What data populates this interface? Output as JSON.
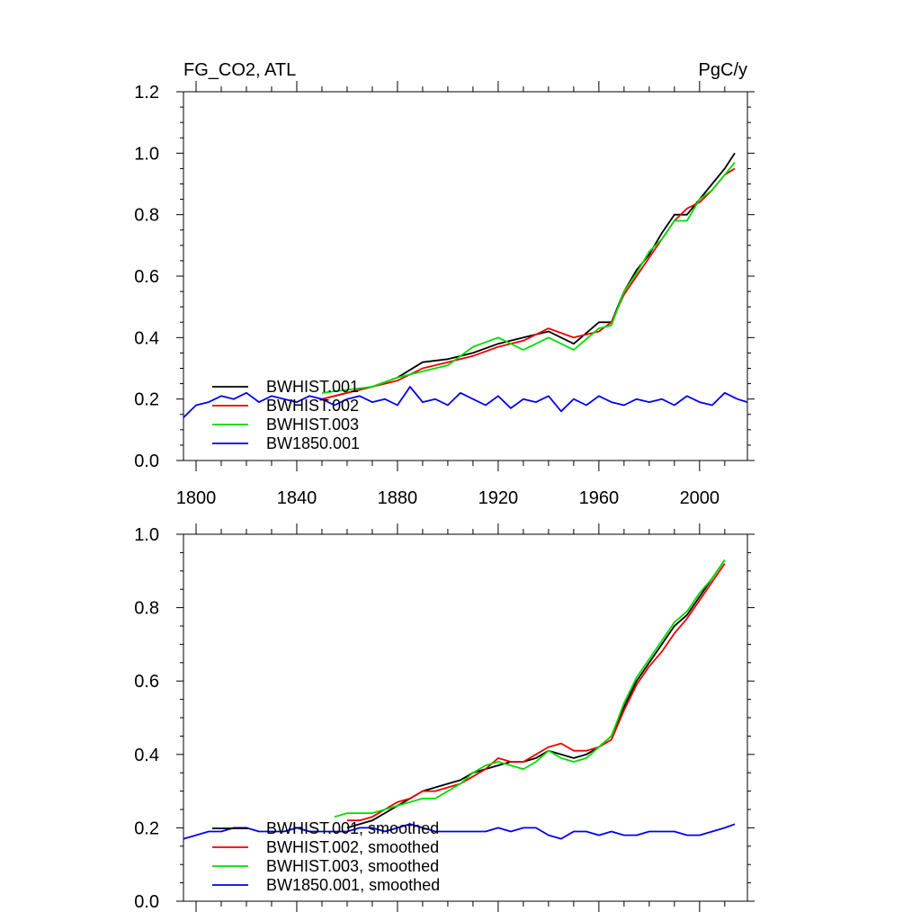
{
  "chart_data": [
    {
      "type": "line",
      "title": "FG_CO2, ATL",
      "units": "PgC/y",
      "xlim": [
        1795,
        2019
      ],
      "ylim": [
        0.0,
        1.2
      ],
      "xticks": [
        1800,
        1840,
        1880,
        1920,
        1960,
        2000
      ],
      "yticks": [
        0.0,
        0.2,
        0.4,
        0.6,
        0.8,
        1.0,
        1.2
      ],
      "ytick_labels": [
        "0.0",
        "0.2",
        "0.4",
        "0.6",
        "0.8",
        "1.0",
        "1.2"
      ],
      "grid": false,
      "legend_position": "bottom-left",
      "series": [
        {
          "name": "BWHIST.001",
          "color": "#000000",
          "x": [
            1850,
            1860,
            1870,
            1880,
            1890,
            1900,
            1910,
            1920,
            1930,
            1940,
            1950,
            1960,
            1965,
            1970,
            1975,
            1980,
            1985,
            1990,
            1995,
            2000,
            2005,
            2010,
            2014
          ],
          "y": [
            0.2,
            0.22,
            0.24,
            0.27,
            0.32,
            0.33,
            0.35,
            0.38,
            0.4,
            0.42,
            0.38,
            0.45,
            0.45,
            0.55,
            0.62,
            0.67,
            0.74,
            0.8,
            0.8,
            0.85,
            0.9,
            0.95,
            1.0
          ]
        },
        {
          "name": "BWHIST.002",
          "color": "#ee0000",
          "x": [
            1850,
            1860,
            1870,
            1880,
            1890,
            1900,
            1910,
            1920,
            1930,
            1940,
            1950,
            1960,
            1965,
            1970,
            1975,
            1980,
            1985,
            1990,
            1995,
            2000,
            2005,
            2010,
            2014
          ],
          "y": [
            0.2,
            0.22,
            0.24,
            0.26,
            0.3,
            0.32,
            0.34,
            0.37,
            0.39,
            0.43,
            0.4,
            0.42,
            0.45,
            0.54,
            0.6,
            0.66,
            0.72,
            0.78,
            0.82,
            0.84,
            0.88,
            0.93,
            0.95
          ]
        },
        {
          "name": "BWHIST.003",
          "color": "#00dd00",
          "x": [
            1850,
            1860,
            1870,
            1880,
            1890,
            1900,
            1910,
            1920,
            1930,
            1940,
            1950,
            1960,
            1965,
            1970,
            1975,
            1980,
            1985,
            1990,
            1995,
            2000,
            2005,
            2010,
            2014
          ],
          "y": [
            0.22,
            0.23,
            0.24,
            0.27,
            0.29,
            0.31,
            0.37,
            0.4,
            0.36,
            0.4,
            0.36,
            0.43,
            0.44,
            0.55,
            0.61,
            0.68,
            0.72,
            0.78,
            0.78,
            0.85,
            0.88,
            0.93,
            0.97
          ]
        },
        {
          "name": "BW1850.001",
          "color": "#0000ee",
          "x": [
            1795,
            1800,
            1805,
            1810,
            1815,
            1820,
            1825,
            1830,
            1835,
            1840,
            1845,
            1850,
            1855,
            1860,
            1865,
            1870,
            1875,
            1880,
            1885,
            1890,
            1895,
            1900,
            1905,
            1910,
            1915,
            1920,
            1925,
            1930,
            1935,
            1940,
            1945,
            1950,
            1955,
            1960,
            1965,
            1970,
            1975,
            1980,
            1985,
            1990,
            1995,
            2000,
            2005,
            2010,
            2015,
            2019
          ],
          "y": [
            0.14,
            0.18,
            0.19,
            0.21,
            0.2,
            0.22,
            0.19,
            0.21,
            0.2,
            0.19,
            0.21,
            0.2,
            0.18,
            0.2,
            0.21,
            0.19,
            0.2,
            0.18,
            0.24,
            0.19,
            0.2,
            0.18,
            0.22,
            0.2,
            0.18,
            0.21,
            0.17,
            0.2,
            0.19,
            0.21,
            0.16,
            0.2,
            0.18,
            0.21,
            0.19,
            0.18,
            0.2,
            0.19,
            0.2,
            0.18,
            0.21,
            0.19,
            0.18,
            0.22,
            0.2,
            0.19
          ]
        }
      ]
    },
    {
      "type": "line",
      "xlim": [
        1795,
        2019
      ],
      "ylim": [
        0.0,
        1.0
      ],
      "yticks": [
        0.0,
        0.2,
        0.4,
        0.6,
        0.8,
        1.0
      ],
      "ytick_labels": [
        "0.0",
        "0.2",
        "0.4",
        "0.6",
        "0.8",
        "1.0"
      ],
      "grid": false,
      "legend_position": "bottom-left",
      "series": [
        {
          "name": "BWHIST.001, smoothed",
          "color": "#000000",
          "x": [
            1860,
            1865,
            1870,
            1875,
            1880,
            1885,
            1890,
            1895,
            1900,
            1905,
            1910,
            1915,
            1920,
            1925,
            1930,
            1935,
            1940,
            1945,
            1950,
            1955,
            1960,
            1965,
            1970,
            1975,
            1980,
            1985,
            1990,
            1995,
            2000,
            2005,
            2010
          ],
          "y": [
            0.2,
            0.21,
            0.22,
            0.24,
            0.26,
            0.28,
            0.3,
            0.31,
            0.32,
            0.33,
            0.35,
            0.36,
            0.37,
            0.38,
            0.38,
            0.39,
            0.41,
            0.4,
            0.39,
            0.4,
            0.42,
            0.45,
            0.53,
            0.6,
            0.65,
            0.7,
            0.75,
            0.78,
            0.83,
            0.88,
            0.93
          ]
        },
        {
          "name": "BWHIST.002, smoothed",
          "color": "#ee0000",
          "x": [
            1860,
            1865,
            1870,
            1875,
            1880,
            1885,
            1890,
            1895,
            1900,
            1905,
            1910,
            1915,
            1920,
            1925,
            1930,
            1935,
            1940,
            1945,
            1950,
            1955,
            1960,
            1965,
            1970,
            1975,
            1980,
            1985,
            1990,
            1995,
            2000,
            2005,
            2010
          ],
          "y": [
            0.22,
            0.22,
            0.23,
            0.25,
            0.27,
            0.28,
            0.3,
            0.3,
            0.31,
            0.32,
            0.34,
            0.36,
            0.39,
            0.38,
            0.38,
            0.4,
            0.42,
            0.43,
            0.41,
            0.41,
            0.42,
            0.44,
            0.52,
            0.59,
            0.64,
            0.68,
            0.73,
            0.77,
            0.82,
            0.87,
            0.92
          ]
        },
        {
          "name": "BWHIST.003, smoothed",
          "color": "#00dd00",
          "x": [
            1855,
            1860,
            1865,
            1870,
            1875,
            1880,
            1885,
            1890,
            1895,
            1900,
            1905,
            1910,
            1915,
            1920,
            1925,
            1930,
            1935,
            1940,
            1945,
            1950,
            1955,
            1960,
            1965,
            1970,
            1975,
            1980,
            1985,
            1990,
            1995,
            2000,
            2005,
            2010
          ],
          "y": [
            0.23,
            0.24,
            0.24,
            0.24,
            0.25,
            0.26,
            0.27,
            0.28,
            0.28,
            0.3,
            0.32,
            0.35,
            0.37,
            0.38,
            0.37,
            0.36,
            0.38,
            0.41,
            0.39,
            0.38,
            0.39,
            0.42,
            0.45,
            0.54,
            0.61,
            0.66,
            0.71,
            0.76,
            0.79,
            0.84,
            0.88,
            0.93
          ]
        },
        {
          "name": "BW1850.001, smoothed",
          "color": "#0000ee",
          "x": [
            1795,
            1800,
            1805,
            1810,
            1815,
            1820,
            1825,
            1830,
            1835,
            1840,
            1845,
            1850,
            1855,
            1860,
            1865,
            1870,
            1875,
            1880,
            1885,
            1890,
            1895,
            1900,
            1905,
            1910,
            1915,
            1920,
            1925,
            1930,
            1935,
            1940,
            1945,
            1950,
            1955,
            1960,
            1965,
            1970,
            1975,
            1980,
            1985,
            1990,
            1995,
            2000,
            2005,
            2010,
            2014
          ],
          "y": [
            0.17,
            0.18,
            0.19,
            0.19,
            0.2,
            0.2,
            0.19,
            0.19,
            0.19,
            0.2,
            0.19,
            0.19,
            0.19,
            0.19,
            0.2,
            0.2,
            0.19,
            0.2,
            0.21,
            0.2,
            0.19,
            0.19,
            0.19,
            0.19,
            0.19,
            0.2,
            0.19,
            0.2,
            0.2,
            0.18,
            0.17,
            0.19,
            0.19,
            0.18,
            0.19,
            0.18,
            0.18,
            0.19,
            0.19,
            0.19,
            0.18,
            0.18,
            0.19,
            0.2,
            0.21
          ]
        }
      ]
    }
  ]
}
